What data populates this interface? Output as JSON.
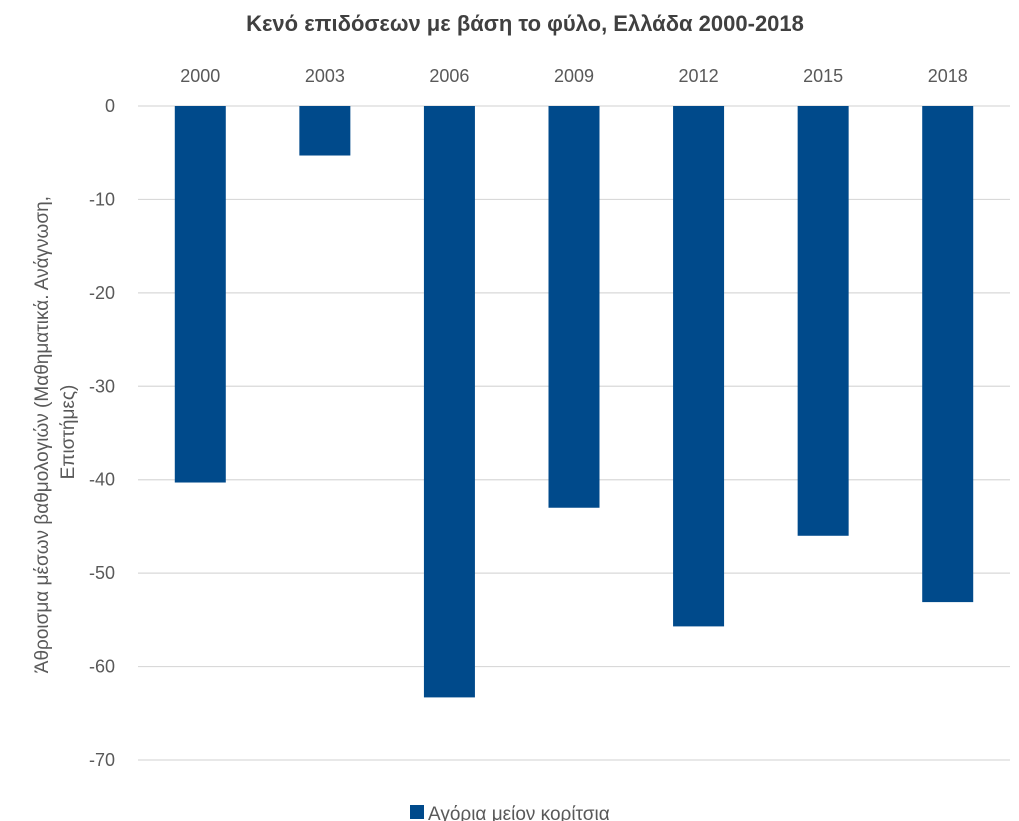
{
  "chart_data": {
    "type": "bar",
    "title": "Κενό επιδόσεων με βάση το φύλο, Ελλάδα 2000-2018",
    "xlabel": "",
    "ylabel_line1": "Άθροισμα μέσων βαθμολογιών (Μαθηματικά. Ανάγνωση,",
    "ylabel_line2": "Επιστήμες)",
    "categories": [
      "2000",
      "2003",
      "2006",
      "2009",
      "2012",
      "2015",
      "2018"
    ],
    "series": [
      {
        "name": "Αγόρια μείον κορίτσια",
        "color": "#004a8b",
        "values": [
          -40.3,
          -5.3,
          -63.3,
          -43.0,
          -55.7,
          -46.0,
          -53.1
        ]
      }
    ],
    "ylim": [
      -70,
      0
    ],
    "yticks": [
      0,
      -10,
      -20,
      -30,
      -40,
      -50,
      -60,
      -70
    ],
    "ytick_labels": [
      "0",
      "-10",
      "-20",
      "-30",
      "-40",
      "-50",
      "-60",
      "-70"
    ],
    "grid": true,
    "legend_position": "bottom"
  }
}
